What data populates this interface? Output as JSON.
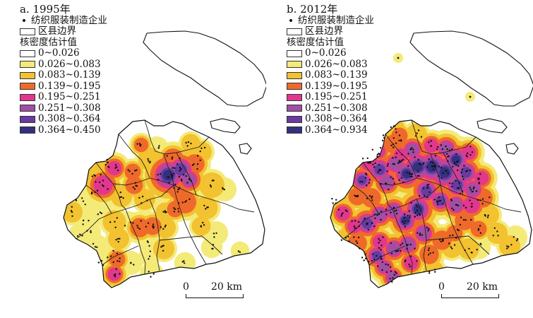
{
  "legend_colors": [
    "#ffffff",
    "#f4ea78",
    "#f2c230",
    "#ef6a2a",
    "#e2378d",
    "#a14fa3",
    "#6a3aa2",
    "#33307f"
  ],
  "panels": [
    {
      "title": "a. 1995年",
      "point_label": "纺织服装制造企业",
      "boundary_label": "区县边界",
      "density_title": "核密度估计值",
      "classes": [
        "0~0.026",
        "0.026~0.083",
        "0.083~0.139",
        "0.139~0.195",
        "0.195~0.251",
        "0.251~0.308",
        "0.308~0.364",
        "0.364~0.450"
      ],
      "scale_zero": "0",
      "scale_label": "20 km"
    },
    {
      "title": "b. 2012年",
      "point_label": "纺织服装制造企业",
      "boundary_label": "区县边界",
      "density_title": "核密度估计值",
      "classes": [
        "0~0.026",
        "0.026~0.083",
        "0.083~0.139",
        "0.139~0.195",
        "0.195~0.251",
        "0.251~0.308",
        "0.308~0.364",
        "0.364~0.934"
      ],
      "scale_zero": "0",
      "scale_label": "20 km"
    }
  ]
}
